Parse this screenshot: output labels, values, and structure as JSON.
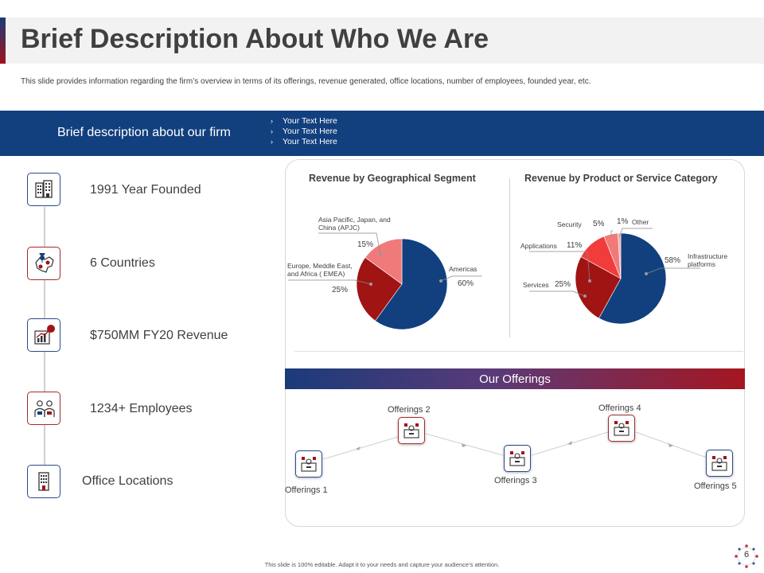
{
  "header": {
    "title": "Brief Description About Who We Are",
    "subtitle": "This slide provides information regarding the firm’s overview in terms of its offerings, revenue generated, office locations, number of employees, founded year, etc."
  },
  "band": {
    "title": "Brief description about our firm",
    "items": [
      "Your Text Here",
      "Your Text Here",
      "Your Text Here"
    ]
  },
  "facts": [
    {
      "text": "1991 Year Founded",
      "icon": "office-building-icon"
    },
    {
      "text": "6 Countries",
      "icon": "map-pin-icon"
    },
    {
      "text": "$750MM FY20 Revenue",
      "icon": "revenue-chart-icon"
    },
    {
      "text": "1234+ Employees",
      "icon": "employees-icon"
    },
    {
      "text": "Office Locations",
      "icon": "office-tower-icon"
    }
  ],
  "chart_data": [
    {
      "type": "pie",
      "title": "Revenue by Geographical Segment",
      "categories": [
        "Americas",
        "Europe, Meddle East, and Africa ( EMEA)",
        "Asia Pacific, Japan, and China (APJC)"
      ],
      "values": [
        60,
        25,
        15
      ],
      "value_labels": [
        "60%",
        "25%",
        "15%"
      ],
      "colors": [
        "#123f7e",
        "#a01414",
        "#f07a7a"
      ]
    },
    {
      "type": "pie",
      "title": "Revenue by Product or Service Category",
      "categories": [
        "Infrastructure platforms",
        "Services",
        "Applications",
        "Security",
        "Other"
      ],
      "values": [
        58,
        25,
        11,
        5,
        1
      ],
      "value_labels": [
        "58%",
        "25%",
        "11%",
        "5%",
        "1%"
      ],
      "colors": [
        "#123f7e",
        "#a01414",
        "#f23b3b",
        "#f07a7a",
        "#f4b0b0"
      ]
    }
  ],
  "offerings": {
    "title": "Our Offerings",
    "items": [
      "Offerings 1",
      "Offerings 2",
      "Offerings 3",
      "Offerings 4",
      "Offerings 5"
    ]
  },
  "footer": {
    "text": "This slide is 100% editable. Adapt it to your needs and capture your audience’s attention.",
    "page": "6"
  }
}
